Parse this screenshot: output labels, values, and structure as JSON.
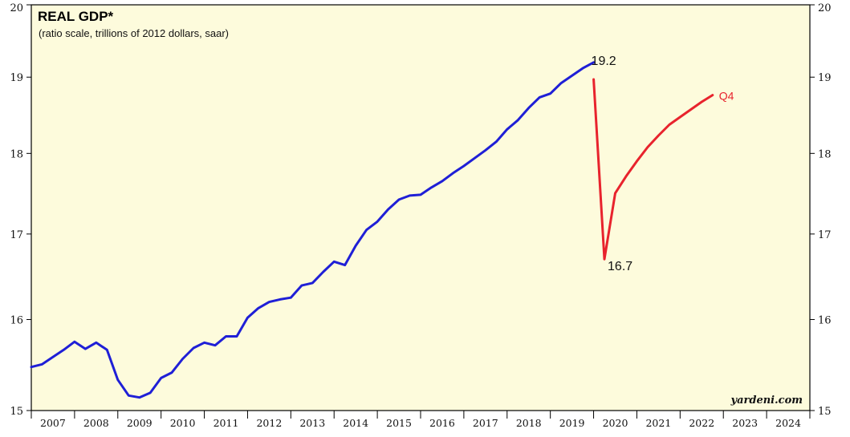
{
  "chart_data": {
    "type": "line",
    "title": "REAL GDP*",
    "subtitle": "(ratio scale, trillions of 2012 dollars, saar)",
    "source": "yardeni.com",
    "y_scale": "log",
    "ylim": [
      15,
      20
    ],
    "yticks": [
      "15",
      "16",
      "17",
      "18",
      "19",
      "20"
    ],
    "x_range": [
      2007.0,
      2025.0
    ],
    "x_tick_labels": [
      "2007",
      "2008",
      "2009",
      "2010",
      "2011",
      "2012",
      "2013",
      "2014",
      "2015",
      "2016",
      "2017",
      "2018",
      "2019",
      "2020",
      "2021",
      "2022",
      "2023",
      "2024"
    ],
    "grid": false,
    "series": [
      {
        "color": "#1f1fd6",
        "x": [
          2007.0,
          2007.25,
          2007.5,
          2007.75,
          2008.0,
          2008.25,
          2008.5,
          2008.75,
          2009.0,
          2009.25,
          2009.5,
          2009.75,
          2010.0,
          2010.25,
          2010.5,
          2010.75,
          2011.0,
          2011.25,
          2011.5,
          2011.75,
          2012.0,
          2012.25,
          2012.5,
          2012.75,
          2013.0,
          2013.25,
          2013.5,
          2013.75,
          2014.0,
          2014.25,
          2014.5,
          2014.75,
          2015.0,
          2015.25,
          2015.5,
          2015.75,
          2016.0,
          2016.25,
          2016.5,
          2016.75,
          2017.0,
          2017.25,
          2017.5,
          2017.75,
          2018.0,
          2018.25,
          2018.5,
          2018.75,
          2019.0,
          2019.25,
          2019.5,
          2019.75,
          2020.0
        ],
        "values": [
          15.47,
          15.5,
          15.58,
          15.66,
          15.75,
          15.67,
          15.74,
          15.66,
          15.33,
          15.16,
          15.14,
          15.19,
          15.35,
          15.41,
          15.56,
          15.68,
          15.74,
          15.71,
          15.81,
          15.81,
          16.02,
          16.13,
          16.2,
          16.23,
          16.25,
          16.39,
          16.42,
          16.55,
          16.67,
          16.63,
          16.86,
          17.05,
          17.15,
          17.3,
          17.42,
          17.47,
          17.48,
          17.57,
          17.65,
          17.75,
          17.84,
          17.94,
          18.04,
          18.15,
          18.31,
          18.43,
          18.59,
          18.73,
          18.78,
          18.92,
          19.02,
          19.12,
          19.2
        ]
      },
      {
        "color": "#e8232d",
        "x": [
          2020.0,
          2020.25,
          2020.5,
          2020.75,
          2021.0,
          2021.25,
          2021.5,
          2021.75,
          2022.0,
          2022.25,
          2022.5,
          2022.75
        ],
        "values": [
          18.97,
          16.7,
          17.5,
          17.71,
          17.9,
          18.08,
          18.23,
          18.37,
          18.47,
          18.57,
          18.67,
          18.76
        ]
      }
    ],
    "annotations": [
      {
        "text": "19.2",
        "x": 2020.0,
        "y": 19.2
      },
      {
        "text": "16.7",
        "x": 2020.25,
        "y": 16.7
      },
      {
        "text": "Q4",
        "x": 2022.75,
        "y": 18.76
      }
    ]
  }
}
